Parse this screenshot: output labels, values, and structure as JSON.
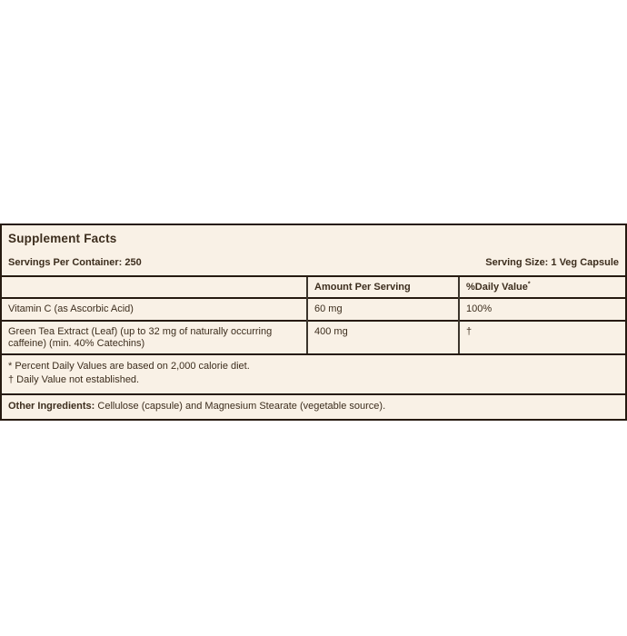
{
  "label": {
    "title": "Supplement Facts",
    "servings_per_container": "Servings Per Container: 250",
    "serving_size": "Serving Size: 1 Veg Capsule",
    "columns": {
      "amount_header": "Amount Per Serving",
      "daily_value_header": "%Daily Value",
      "daily_value_superscript": "*"
    },
    "rows": [
      {
        "ingredient": "Vitamin C (as Ascorbic Acid)",
        "amount": "60 mg",
        "daily_value": "100%"
      },
      {
        "ingredient": "Green Tea Extract (Leaf) (up to 32 mg of naturally occurring caffeine) (min. 40% Catechins)",
        "amount": "400 mg",
        "daily_value": "†"
      }
    ],
    "footnotes": [
      "* Percent Daily Values are based on 2,000 calorie diet.",
      "† Daily Value not established."
    ],
    "other_ingredients_label": "Other Ingredients:",
    "other_ingredients_text": " Cellulose (capsule) and Magnesium Stearate (vegetable source).",
    "colors": {
      "label_background": "#f9f1e6",
      "border": "#261a10",
      "text": "#3c2d1d"
    }
  }
}
